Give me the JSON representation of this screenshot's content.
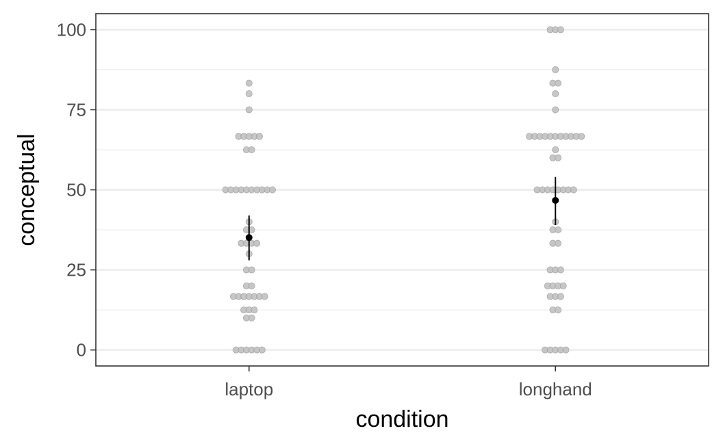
{
  "chart_data": {
    "type": "scatter",
    "title": "",
    "xlabel": "condition",
    "ylabel": "conceptual",
    "categories": [
      "laptop",
      "longhand"
    ],
    "ylim": [
      -5,
      105
    ],
    "y_ticks": [
      0,
      25,
      50,
      75,
      100
    ],
    "y_tick_labels": [
      "0",
      "25",
      "50",
      "75",
      "100"
    ],
    "grid": true,
    "colors": {
      "points": "#bdbdbd",
      "summary": "#000000",
      "grid": "#ebebeb",
      "panel_border": "#333333"
    },
    "series": [
      {
        "category": "laptop",
        "points": [
          {
            "y": 83.3,
            "count": 1
          },
          {
            "y": 80.0,
            "count": 1
          },
          {
            "y": 75.0,
            "count": 1
          },
          {
            "y": 66.7,
            "count": 5
          },
          {
            "y": 62.5,
            "count": 2
          },
          {
            "y": 50.0,
            "count": 10
          },
          {
            "y": 40.0,
            "count": 1
          },
          {
            "y": 37.5,
            "count": 2
          },
          {
            "y": 33.3,
            "count": 4
          },
          {
            "y": 30.0,
            "count": 1
          },
          {
            "y": 25.0,
            "count": 2
          },
          {
            "y": 20.0,
            "count": 2
          },
          {
            "y": 16.7,
            "count": 7
          },
          {
            "y": 12.5,
            "count": 3
          },
          {
            "y": 10.0,
            "count": 2
          },
          {
            "y": 0.0,
            "count": 6
          }
        ],
        "mean": 35.1,
        "ci": [
          28.0,
          42.0
        ]
      },
      {
        "category": "longhand",
        "points": [
          {
            "y": 100.0,
            "count": 3
          },
          {
            "y": 87.5,
            "count": 1
          },
          {
            "y": 83.3,
            "count": 2
          },
          {
            "y": 80.0,
            "count": 1
          },
          {
            "y": 75.0,
            "count": 1
          },
          {
            "y": 66.7,
            "count": 11
          },
          {
            "y": 62.5,
            "count": 1
          },
          {
            "y": 60.0,
            "count": 2
          },
          {
            "y": 50.0,
            "count": 8
          },
          {
            "y": 40.0,
            "count": 1
          },
          {
            "y": 37.5,
            "count": 2
          },
          {
            "y": 33.3,
            "count": 2
          },
          {
            "y": 25.0,
            "count": 3
          },
          {
            "y": 20.0,
            "count": 4
          },
          {
            "y": 16.7,
            "count": 3
          },
          {
            "y": 12.5,
            "count": 2
          },
          {
            "y": 0.0,
            "count": 5
          }
        ],
        "mean": 46.7,
        "ci": [
          39.0,
          54.0
        ]
      }
    ]
  }
}
